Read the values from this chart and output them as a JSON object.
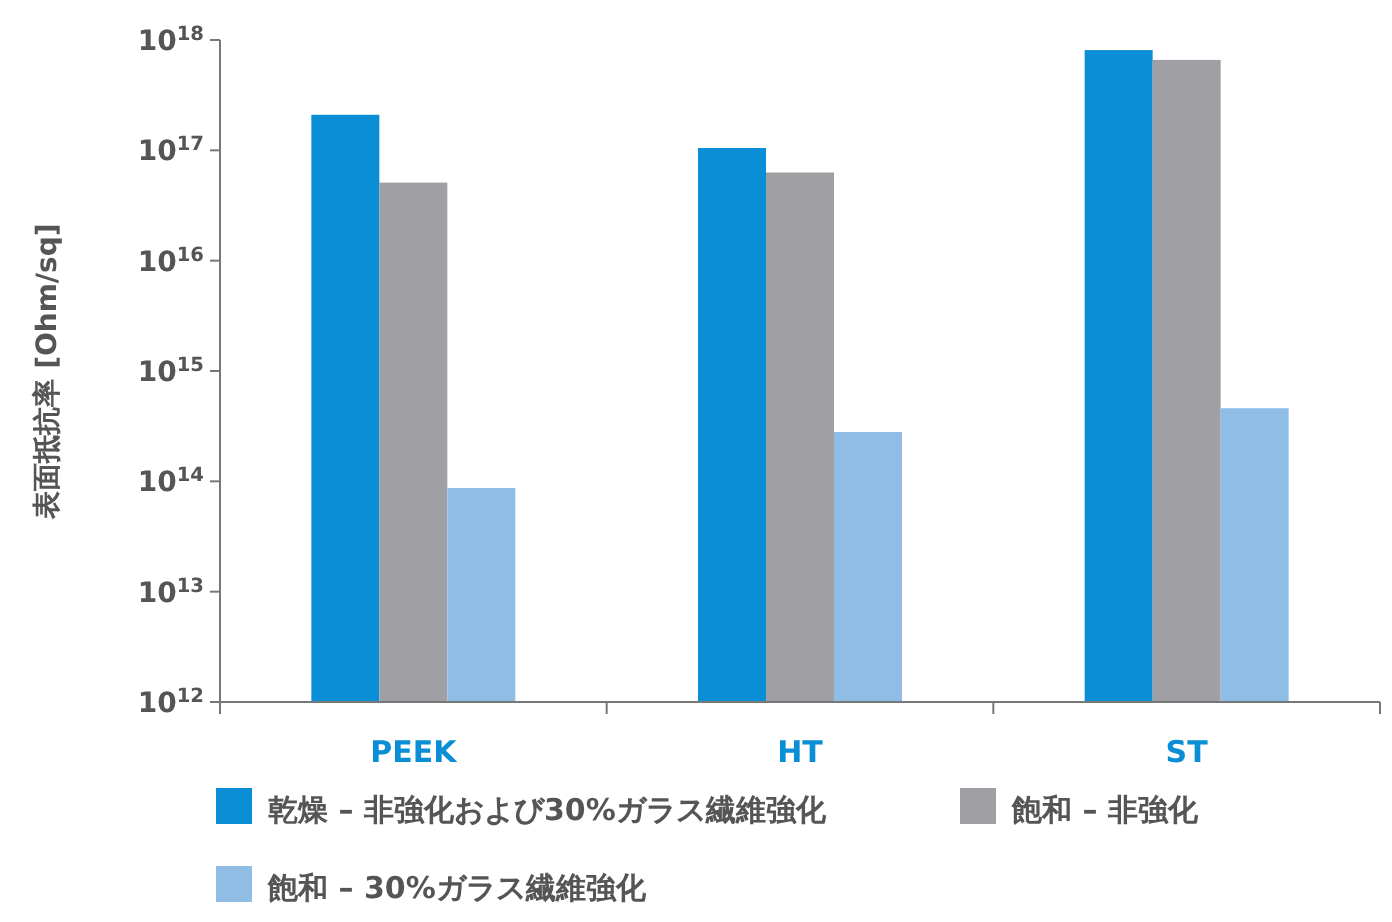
{
  "chart_data": {
    "type": "bar",
    "ylabel": "表面抵抗率 [Ohm/sq]",
    "categories": [
      "PEEK",
      "HT",
      "ST"
    ],
    "series": [
      {
        "name": "乾燥 – 非強化および30%ガラス繊維強化",
        "color": "#0a8fd6",
        "values": [
          2.1e+17,
          1.05e+17,
          8.1e+17
        ]
      },
      {
        "name": "飽和 – 非強化",
        "color": "#a0a0a4",
        "values": [
          5.1e+16,
          6.3e+16,
          6.6e+17
        ]
      },
      {
        "name": "飽和 – 30%ガラス繊維強化",
        "color": "#8fbde6",
        "values": [
          87000000000000.0,
          280000000000000.0,
          460000000000000.0
        ]
      }
    ],
    "log": true,
    "ylim": [
      1000000000000.0,
      1e+18
    ],
    "yticks": [
      {
        "value": 1000000000000.0,
        "label": "10$^{12}$"
      },
      {
        "value": 10000000000000.0,
        "label": "10$^{13}$"
      },
      {
        "value": 100000000000000.0,
        "label": "10$^{14}$"
      },
      {
        "value": 1000000000000000.0,
        "label": "10$^{15}$"
      },
      {
        "value": 1e+16,
        "label": "10$^{16}$"
      },
      {
        "value": 1e+17,
        "label": "10$^{17}$"
      },
      {
        "value": 1e+18,
        "label": "10$^{18}$"
      }
    ],
    "legend": "bottom"
  }
}
